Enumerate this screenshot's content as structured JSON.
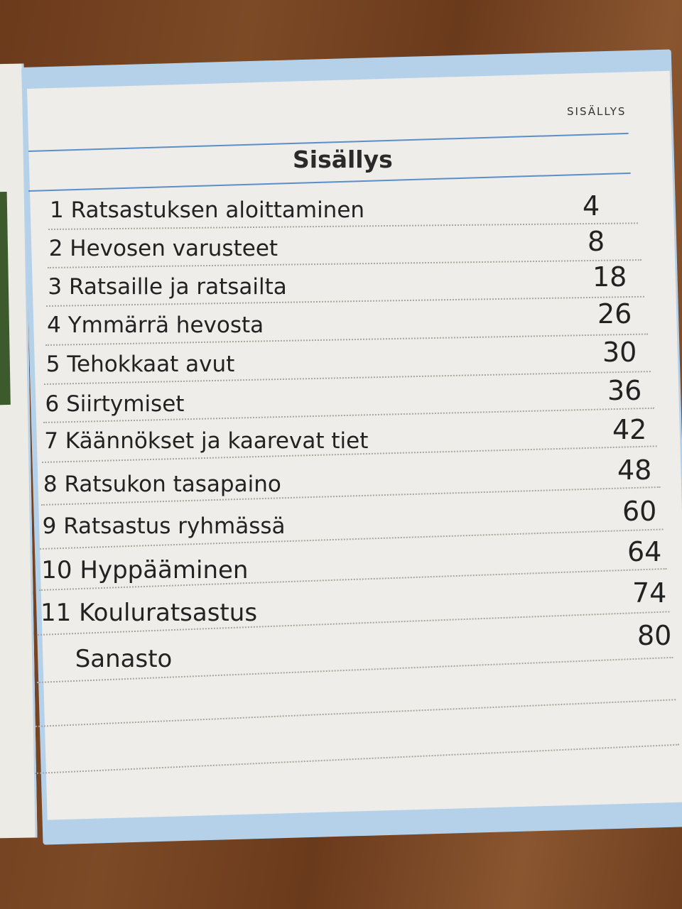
{
  "running_head": "SISÄLLYS",
  "title": "Sisällys",
  "colors": {
    "frame": "#b5d1ea",
    "rule": "#5b8fc9",
    "page": "#eeede9"
  },
  "entries": [
    {
      "number": "1",
      "label": "Ratsastuksen aloittaminen",
      "page": "4"
    },
    {
      "number": "2",
      "label": "Hevosen varusteet",
      "page": "8"
    },
    {
      "number": "3",
      "label": "Ratsaille ja ratsailta",
      "page": "18"
    },
    {
      "number": "4",
      "label": "Ymmärrä hevosta",
      "page": "26"
    },
    {
      "number": "5",
      "label": "Tehokkaat avut",
      "page": "30"
    },
    {
      "number": "6",
      "label": "Siirtymiset",
      "page": "36"
    },
    {
      "number": "7",
      "label": "Käännökset ja kaarevat tiet",
      "page": "42"
    },
    {
      "number": "8",
      "label": "Ratsukon tasapaino",
      "page": "48"
    },
    {
      "number": "9",
      "label": "Ratsastus ryhmässä",
      "page": "60"
    },
    {
      "number": "10",
      "label": "Hyppääminen",
      "page": "64"
    },
    {
      "number": "11",
      "label": "Kouluratsastus",
      "page": "74"
    },
    {
      "number": "",
      "label": "Sanasto",
      "page": "80"
    }
  ]
}
